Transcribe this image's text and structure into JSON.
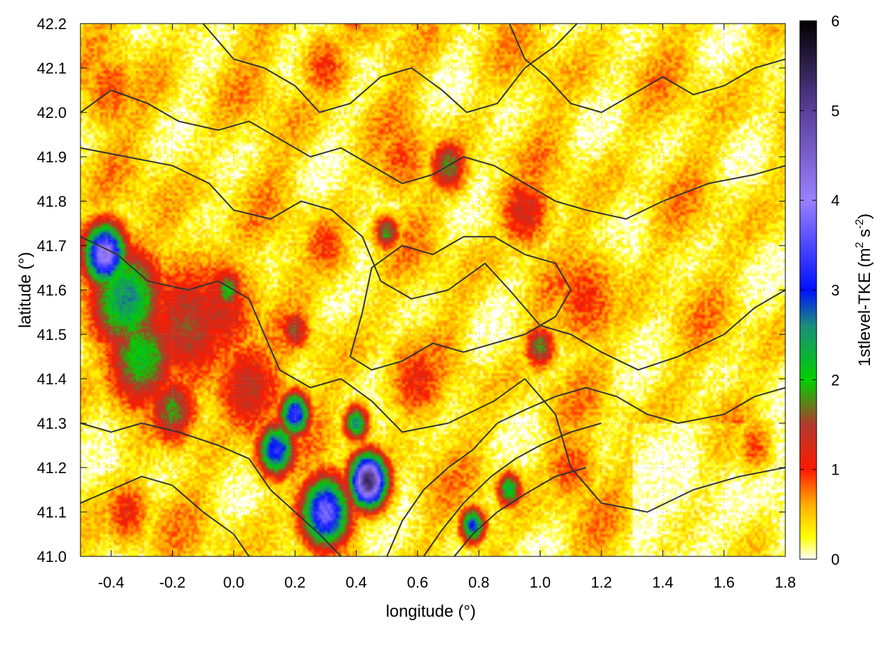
{
  "chart_data": {
    "type": "heatmap",
    "xlabel": "longitude (°)",
    "ylabel": "latitude (°)",
    "colorbar_label_main": "1stlevel-TKE (m",
    "colorbar_label_sup1": "2",
    "colorbar_label_mid": " s",
    "colorbar_label_sup2": "-2",
    "colorbar_label_end": ")",
    "xlim": [
      -0.5,
      1.8
    ],
    "ylim": [
      41.0,
      42.2
    ],
    "zlim": [
      0,
      6
    ],
    "x_ticks": [
      -0.4,
      -0.2,
      0.0,
      0.2,
      0.4,
      0.6,
      0.8,
      1.0,
      1.2,
      1.4,
      1.6,
      1.8
    ],
    "x_tick_labels": [
      "-0.4",
      "-0.2",
      "0.0",
      "0.2",
      "0.4",
      "0.6",
      "0.8",
      "1.0",
      "1.2",
      "1.4",
      "1.6",
      "1.8"
    ],
    "y_ticks": [
      41.0,
      41.1,
      41.2,
      41.3,
      41.4,
      41.5,
      41.6,
      41.7,
      41.8,
      41.9,
      42.0,
      42.1,
      42.2
    ],
    "y_tick_labels": [
      "41.0",
      "41.1",
      "41.2",
      "41.3",
      "41.4",
      "41.5",
      "41.6",
      "41.7",
      "41.8",
      "41.9",
      "42.0",
      "42.1",
      "42.2"
    ],
    "z_ticks": [
      0,
      1,
      2,
      3,
      4,
      5,
      6
    ],
    "z_tick_labels": [
      "0",
      "1",
      "2",
      "3",
      "4",
      "5",
      "6"
    ],
    "grid": true,
    "colormap": [
      {
        "z": 0.0,
        "color": "#ffffff"
      },
      {
        "z": 0.25,
        "color": "#ffff00"
      },
      {
        "z": 0.6,
        "color": "#ffb000"
      },
      {
        "z": 1.0,
        "color": "#ff1a00"
      },
      {
        "z": 1.5,
        "color": "#b03a2e"
      },
      {
        "z": 2.0,
        "color": "#00d000"
      },
      {
        "z": 2.6,
        "color": "#1a8f7a"
      },
      {
        "z": 3.0,
        "color": "#0010ff"
      },
      {
        "z": 4.0,
        "color": "#9a80ff"
      },
      {
        "z": 5.0,
        "color": "#5a3f9a"
      },
      {
        "z": 6.0,
        "color": "#000000"
      }
    ],
    "hotspots": [
      {
        "x": -0.42,
        "y": 41.68,
        "z": 4.2,
        "r": 0.07
      },
      {
        "x": -0.35,
        "y": 41.58,
        "z": 2.6,
        "r": 0.12
      },
      {
        "x": -0.3,
        "y": 41.45,
        "z": 2.1,
        "r": 0.12
      },
      {
        "x": -0.15,
        "y": 41.52,
        "z": 1.5,
        "r": 0.16
      },
      {
        "x": -0.05,
        "y": 41.55,
        "z": 1.3,
        "r": 0.14
      },
      {
        "x": -0.02,
        "y": 41.6,
        "z": 2.0,
        "r": 0.05
      },
      {
        "x": -0.2,
        "y": 41.33,
        "z": 1.8,
        "r": 0.08
      },
      {
        "x": 0.05,
        "y": 41.38,
        "z": 1.4,
        "r": 0.12
      },
      {
        "x": 0.14,
        "y": 41.24,
        "z": 3.3,
        "r": 0.06
      },
      {
        "x": 0.2,
        "y": 41.32,
        "z": 3.4,
        "r": 0.05
      },
      {
        "x": 0.3,
        "y": 41.1,
        "z": 3.8,
        "r": 0.08
      },
      {
        "x": 0.44,
        "y": 41.17,
        "z": 5.4,
        "r": 0.06
      },
      {
        "x": 0.4,
        "y": 41.3,
        "z": 2.6,
        "r": 0.04
      },
      {
        "x": 0.2,
        "y": 41.51,
        "z": 1.6,
        "r": 0.05
      },
      {
        "x": 0.5,
        "y": 41.73,
        "z": 1.9,
        "r": 0.04
      },
      {
        "x": 0.78,
        "y": 41.07,
        "z": 3.0,
        "r": 0.04
      },
      {
        "x": 0.9,
        "y": 41.15,
        "z": 2.3,
        "r": 0.04
      },
      {
        "x": 1.0,
        "y": 41.47,
        "z": 1.8,
        "r": 0.05
      },
      {
        "x": 0.7,
        "y": 41.88,
        "z": 1.8,
        "r": 0.06
      },
      {
        "x": 0.95,
        "y": 41.78,
        "z": 1.3,
        "r": 0.09
      },
      {
        "x": 1.15,
        "y": 41.58,
        "z": 1.0,
        "r": 0.12
      },
      {
        "x": 0.6,
        "y": 41.4,
        "z": 1.1,
        "r": 0.1
      },
      {
        "x": 0.55,
        "y": 41.9,
        "z": 0.9,
        "r": 0.1
      },
      {
        "x": 0.3,
        "y": 42.1,
        "z": 1.0,
        "r": 0.08
      },
      {
        "x": -0.4,
        "y": 42.05,
        "z": 0.9,
        "r": 0.1
      },
      {
        "x": -0.35,
        "y": 41.1,
        "z": 1.1,
        "r": 0.08
      },
      {
        "x": 0.3,
        "y": 41.7,
        "z": 1.0,
        "r": 0.08
      },
      {
        "x": 1.1,
        "y": 41.2,
        "z": 0.9,
        "r": 0.1
      },
      {
        "x": 1.7,
        "y": 41.25,
        "z": 0.9,
        "r": 0.06
      }
    ],
    "contours": [
      [
        [
          -0.5,
          41.72
        ],
        [
          -0.38,
          41.68
        ],
        [
          -0.28,
          41.62
        ],
        [
          -0.15,
          41.6
        ],
        [
          -0.05,
          41.62
        ],
        [
          0.05,
          41.58
        ],
        [
          0.1,
          41.5
        ],
        [
          0.15,
          41.42
        ],
        [
          0.25,
          41.38
        ],
        [
          0.35,
          41.4
        ],
        [
          0.45,
          41.35
        ],
        [
          0.55,
          41.28
        ],
        [
          0.7,
          41.3
        ],
        [
          0.85,
          41.35
        ],
        [
          0.95,
          41.4
        ],
        [
          1.05,
          41.32
        ],
        [
          1.1,
          41.2
        ],
        [
          1.2,
          41.12
        ],
        [
          1.35,
          41.1
        ],
        [
          1.5,
          41.15
        ],
        [
          1.65,
          41.18
        ],
        [
          1.8,
          41.2
        ]
      ],
      [
        [
          -0.5,
          41.92
        ],
        [
          -0.35,
          41.9
        ],
        [
          -0.2,
          41.88
        ],
        [
          -0.08,
          41.84
        ],
        [
          0.0,
          41.78
        ],
        [
          0.12,
          41.76
        ],
        [
          0.22,
          41.8
        ],
        [
          0.32,
          41.78
        ],
        [
          0.42,
          41.72
        ],
        [
          0.48,
          41.62
        ],
        [
          0.58,
          41.58
        ],
        [
          0.7,
          41.6
        ],
        [
          0.82,
          41.66
        ],
        [
          0.9,
          41.6
        ],
        [
          1.0,
          41.52
        ],
        [
          1.1,
          41.5
        ],
        [
          1.2,
          41.46
        ],
        [
          1.32,
          41.42
        ],
        [
          1.45,
          41.45
        ],
        [
          1.6,
          41.5
        ],
        [
          1.7,
          41.56
        ],
        [
          1.8,
          41.6
        ]
      ],
      [
        [
          -0.5,
          42.0
        ],
        [
          -0.4,
          42.05
        ],
        [
          -0.28,
          42.02
        ],
        [
          -0.18,
          41.98
        ],
        [
          -0.05,
          41.96
        ],
        [
          0.05,
          41.98
        ],
        [
          0.15,
          41.94
        ],
        [
          0.25,
          41.9
        ],
        [
          0.35,
          41.92
        ],
        [
          0.45,
          41.88
        ],
        [
          0.55,
          41.84
        ],
        [
          0.65,
          41.86
        ],
        [
          0.75,
          41.9
        ],
        [
          0.85,
          41.88
        ],
        [
          0.95,
          41.84
        ],
        [
          1.05,
          41.8
        ],
        [
          1.15,
          41.78
        ],
        [
          1.28,
          41.76
        ],
        [
          1.4,
          41.8
        ],
        [
          1.55,
          41.84
        ],
        [
          1.7,
          41.86
        ],
        [
          1.8,
          41.88
        ]
      ],
      [
        [
          -0.1,
          42.2
        ],
        [
          0.0,
          42.12
        ],
        [
          0.1,
          42.1
        ],
        [
          0.2,
          42.06
        ],
        [
          0.28,
          42.0
        ],
        [
          0.38,
          42.02
        ],
        [
          0.48,
          42.08
        ],
        [
          0.58,
          42.1
        ],
        [
          0.68,
          42.05
        ],
        [
          0.76,
          42.0
        ],
        [
          0.86,
          42.02
        ],
        [
          0.95,
          42.1
        ],
        [
          1.05,
          42.15
        ],
        [
          1.12,
          42.2
        ]
      ],
      [
        [
          -0.5,
          41.3
        ],
        [
          -0.4,
          41.28
        ],
        [
          -0.3,
          41.3
        ],
        [
          -0.18,
          41.28
        ],
        [
          -0.05,
          41.25
        ],
        [
          0.05,
          41.22
        ],
        [
          0.12,
          41.15
        ],
        [
          0.2,
          41.1
        ],
        [
          0.28,
          41.05
        ],
        [
          0.35,
          41.0
        ]
      ],
      [
        [
          -0.5,
          41.12
        ],
        [
          -0.4,
          41.15
        ],
        [
          -0.3,
          41.18
        ],
        [
          -0.2,
          41.16
        ],
        [
          -0.1,
          41.1
        ],
        [
          0.0,
          41.05
        ],
        [
          0.05,
          41.0
        ]
      ],
      [
        [
          0.5,
          41.0
        ],
        [
          0.55,
          41.08
        ],
        [
          0.62,
          41.15
        ],
        [
          0.7,
          41.2
        ],
        [
          0.78,
          41.24
        ],
        [
          0.86,
          41.3
        ],
        [
          0.95,
          41.33
        ],
        [
          1.05,
          41.36
        ],
        [
          1.15,
          41.38
        ],
        [
          1.25,
          41.36
        ],
        [
          1.35,
          41.32
        ],
        [
          1.45,
          41.3
        ],
        [
          1.6,
          41.32
        ],
        [
          1.7,
          41.36
        ],
        [
          1.8,
          41.38
        ]
      ],
      [
        [
          0.62,
          41.0
        ],
        [
          0.68,
          41.06
        ],
        [
          0.75,
          41.12
        ],
        [
          0.84,
          41.18
        ],
        [
          0.92,
          41.22
        ],
        [
          1.0,
          41.25
        ],
        [
          1.1,
          41.28
        ],
        [
          1.2,
          41.3
        ]
      ],
      [
        [
          0.72,
          41.0
        ],
        [
          0.78,
          41.05
        ],
        [
          0.86,
          41.1
        ],
        [
          0.95,
          41.14
        ],
        [
          1.05,
          41.18
        ],
        [
          1.15,
          41.2
        ]
      ],
      [
        [
          0.38,
          41.45
        ],
        [
          0.42,
          41.55
        ],
        [
          0.45,
          41.65
        ],
        [
          0.55,
          41.7
        ],
        [
          0.65,
          41.68
        ],
        [
          0.75,
          41.72
        ],
        [
          0.85,
          41.72
        ],
        [
          0.95,
          41.68
        ],
        [
          1.05,
          41.66
        ],
        [
          1.1,
          41.6
        ],
        [
          1.05,
          41.54
        ],
        [
          0.95,
          41.5
        ],
        [
          0.85,
          41.48
        ],
        [
          0.75,
          41.46
        ],
        [
          0.65,
          41.48
        ],
        [
          0.55,
          41.44
        ],
        [
          0.45,
          41.42
        ],
        [
          0.38,
          41.45
        ]
      ],
      [
        [
          0.9,
          42.2
        ],
        [
          0.95,
          42.12
        ],
        [
          1.02,
          42.08
        ],
        [
          1.1,
          42.02
        ],
        [
          1.2,
          42.0
        ],
        [
          1.3,
          42.04
        ],
        [
          1.4,
          42.08
        ],
        [
          1.5,
          42.04
        ],
        [
          1.6,
          42.06
        ],
        [
          1.7,
          42.1
        ],
        [
          1.8,
          42.12
        ]
      ]
    ]
  }
}
